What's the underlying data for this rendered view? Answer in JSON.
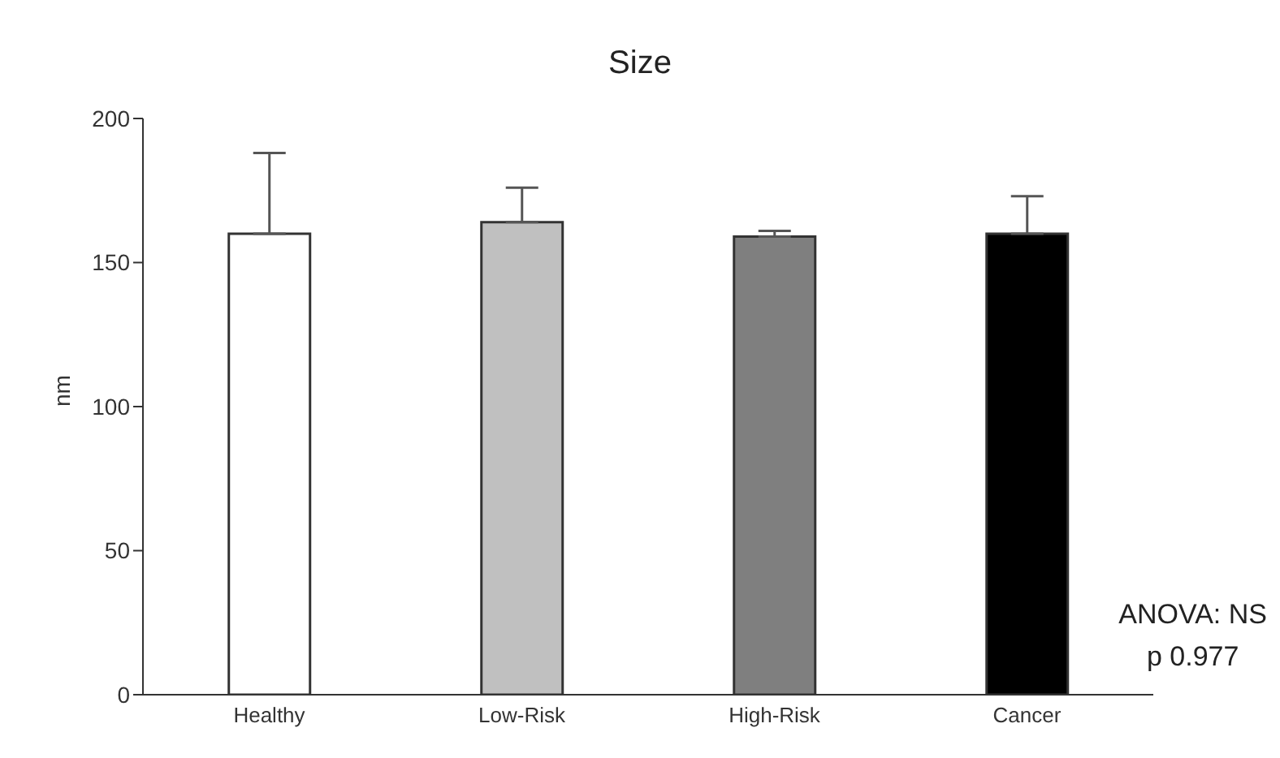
{
  "chart_data": {
    "type": "bar",
    "title": "Size",
    "ylabel": "nm",
    "categories": [
      "Healthy",
      "Low-Risk",
      "High-Risk",
      "Cancer"
    ],
    "values": [
      160,
      164,
      159,
      160
    ],
    "colors": [
      "#ffffff",
      "#c0c0c0",
      "#7f7f7f",
      "#000000"
    ],
    "errors": [
      [
        160,
        188
      ],
      [
        164,
        176
      ],
      [
        159,
        161
      ],
      [
        160,
        173
      ]
    ],
    "ylim": [
      0,
      200
    ],
    "yticks": [
      0,
      50,
      100,
      150,
      200
    ],
    "grid": false,
    "legend": false,
    "annotations": [
      "ANOVA: NS",
      "p 0.977"
    ]
  }
}
